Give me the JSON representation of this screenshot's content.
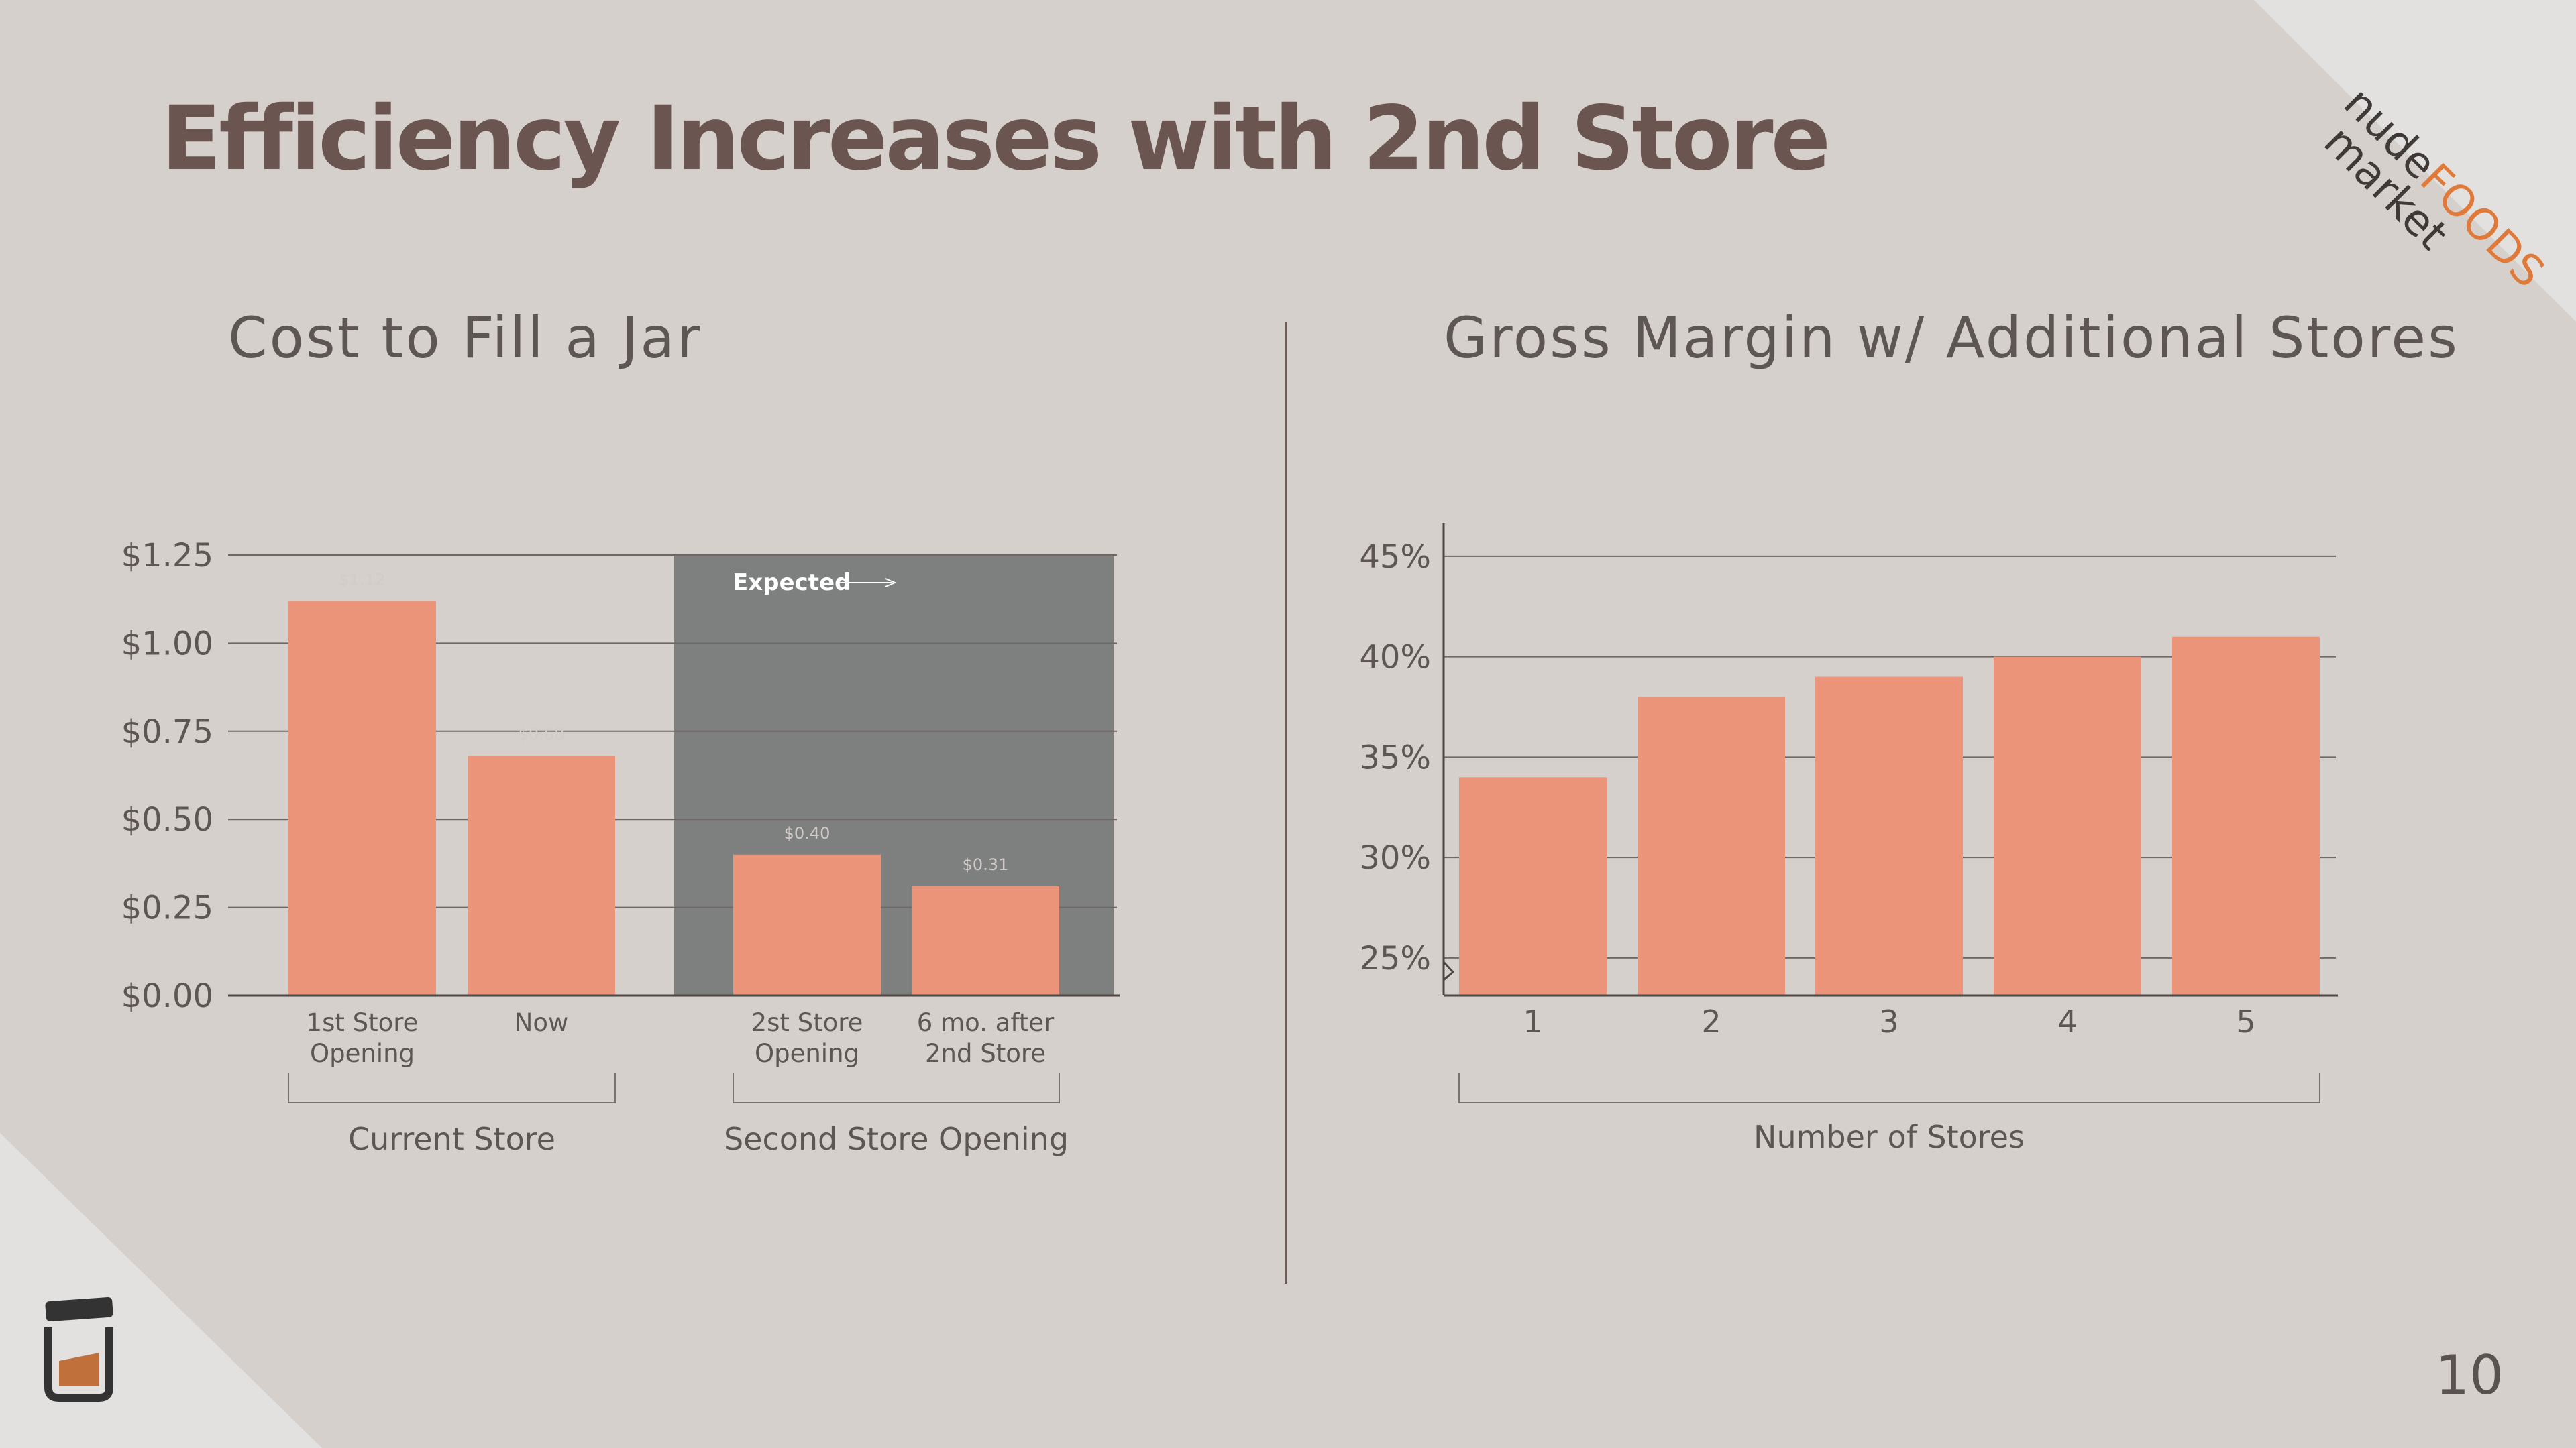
{
  "slide": {
    "title": "Efficiency Increases with 2nd Store",
    "page_number": "10",
    "logo": {
      "word1": "nude",
      "word2": "FOODS",
      "word3": "market"
    },
    "colors": {
      "background": "#d5d0cc",
      "bar": "#ec9479",
      "title": "#6a5550",
      "shade": "#7d807f",
      "logo_accent": "#e07a3a"
    }
  },
  "chart_data": [
    {
      "type": "bar",
      "title": "Cost to Fill a Jar",
      "categories": [
        "1st Store Opening",
        "Now",
        "2st Store Opening",
        "6 mo. after 2nd Store"
      ],
      "values": [
        1.12,
        0.68,
        0.4,
        0.31
      ],
      "data_labels": [
        "$1.12",
        "$0.68",
        "$0.40",
        "$0.31"
      ],
      "ylim": [
        0,
        1.25
      ],
      "yticks": [
        0,
        0.25,
        0.5,
        0.75,
        1.0,
        1.25
      ],
      "ytick_labels": [
        "$0.00",
        "$0.25",
        "$0.50",
        "$0.75",
        "$1.00",
        "$1.25"
      ],
      "groups": [
        {
          "label": "Current Store",
          "categories": [
            "1st Store Opening",
            "Now"
          ]
        },
        {
          "label": "Second Store Opening",
          "categories": [
            "2st Store Opening",
            "6 mo. after 2nd Store"
          ]
        }
      ],
      "annotation": "Expected",
      "shaded_categories": [
        "2st Store Opening",
        "6 mo. after 2nd Store"
      ],
      "grid": true
    },
    {
      "type": "bar",
      "title": "Gross Margin w/ Additional Stores",
      "categories": [
        "1",
        "2",
        "3",
        "4",
        "5"
      ],
      "values": [
        34,
        38,
        39,
        40,
        41
      ],
      "ylim": [
        23.125,
        46.667
      ],
      "yticks": [
        25,
        30,
        35,
        40,
        45
      ],
      "ytick_labels": [
        "25%",
        "30%",
        "35%",
        "40%",
        "45%"
      ],
      "xlabel": "Number of Stores",
      "axis_break": true,
      "grid": true
    }
  ]
}
